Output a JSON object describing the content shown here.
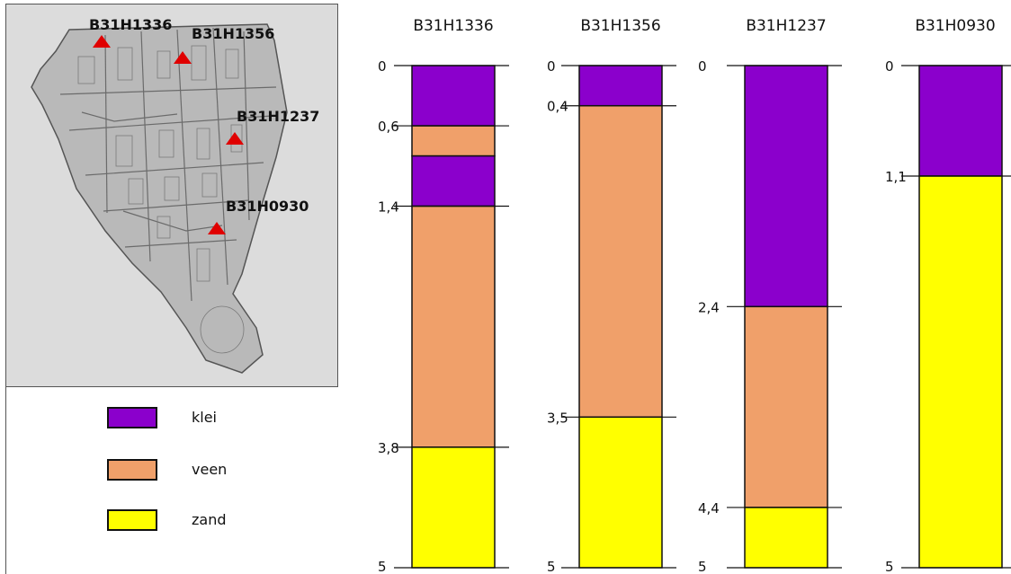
{
  "map": {
    "points": [
      {
        "id": "B31H1336",
        "label": "B31H1336"
      },
      {
        "id": "B31H1356",
        "label": "B31H1356"
      },
      {
        "id": "B31H1237",
        "label": "B31H1237"
      },
      {
        "id": "B31H0930",
        "label": "B31H0930"
      }
    ],
    "marker_color": "#e00000"
  },
  "legend": {
    "items": [
      {
        "label": "klei",
        "color": "#8b00cc"
      },
      {
        "label": "veen",
        "color": "#f0a06a"
      },
      {
        "label": "zand",
        "color": "#ffff00"
      }
    ]
  },
  "chart_data": {
    "type": "bar",
    "title": "",
    "ylim": [
      0,
      5
    ],
    "y_inverted": true,
    "series": [
      {
        "name": "B31H1336",
        "layers": [
          {
            "material": "klei",
            "top": 0,
            "bottom": 0.6
          },
          {
            "material": "veen",
            "top": 0.6,
            "bottom": 0.9
          },
          {
            "material": "klei",
            "top": 0.9,
            "bottom": 1.4
          },
          {
            "material": "veen",
            "top": 1.4,
            "bottom": 3.8
          },
          {
            "material": "zand",
            "top": 3.8,
            "bottom": 5
          }
        ],
        "tick_labels": [
          "0",
          "0,6",
          "1,4",
          "3,8",
          "5"
        ],
        "tick_values": [
          0,
          0.6,
          1.4,
          3.8,
          5
        ]
      },
      {
        "name": "B31H1356",
        "layers": [
          {
            "material": "klei",
            "top": 0,
            "bottom": 0.4
          },
          {
            "material": "veen",
            "top": 0.4,
            "bottom": 3.5
          },
          {
            "material": "zand",
            "top": 3.5,
            "bottom": 5
          }
        ],
        "tick_labels": [
          "0",
          "0,4",
          "3,5",
          "5"
        ],
        "tick_values": [
          0,
          0.4,
          3.5,
          5
        ]
      },
      {
        "name": "B31H1237",
        "layers": [
          {
            "material": "klei",
            "top": 0,
            "bottom": 2.4
          },
          {
            "material": "veen",
            "top": 2.4,
            "bottom": 4.4
          },
          {
            "material": "zand",
            "top": 4.4,
            "bottom": 5
          }
        ],
        "tick_labels": [
          "0",
          "2,4",
          "4,4",
          "5"
        ],
        "tick_values": [
          0,
          2.4,
          4.4,
          5
        ]
      },
      {
        "name": "B31H0930",
        "layers": [
          {
            "material": "klei",
            "top": 0,
            "bottom": 1.1
          },
          {
            "material": "zand",
            "top": 1.1,
            "bottom": 5
          }
        ],
        "tick_labels": [
          "0",
          "1,1",
          "5"
        ],
        "tick_values": [
          0,
          1.1,
          5
        ]
      }
    ],
    "colors": {
      "klei": "#8b00cc",
      "veen": "#f0a06a",
      "zand": "#ffff00"
    }
  }
}
